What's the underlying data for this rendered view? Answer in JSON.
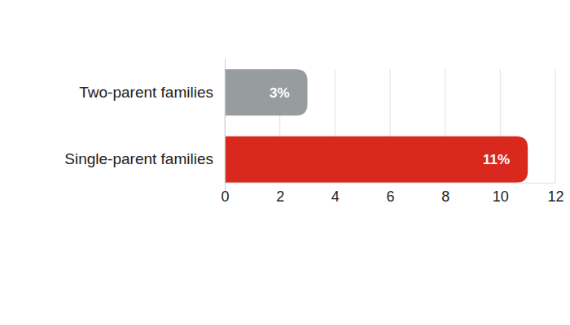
{
  "chart_data": {
    "type": "bar",
    "orientation": "horizontal",
    "categories": [
      "Two-parent families",
      "Single-parent families"
    ],
    "values": [
      3,
      11
    ],
    "value_labels": [
      "3%",
      "11%"
    ],
    "colors": [
      "#979c9e",
      "#d9291f"
    ],
    "xlim": [
      0,
      12
    ],
    "xticks": [
      0,
      2,
      4,
      6,
      8,
      10,
      12
    ],
    "grid": true,
    "data_labels": true
  }
}
